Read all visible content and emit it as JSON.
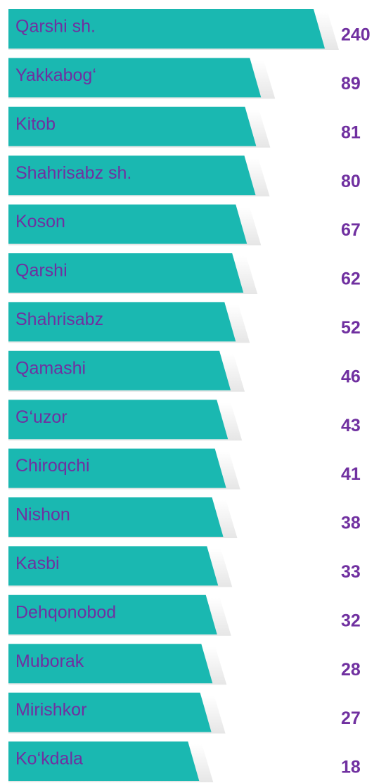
{
  "chart_data": {
    "type": "bar",
    "orientation": "horizontal",
    "categories": [
      "Qarshi sh.",
      "Yakkabog‘",
      "Kitob",
      "Shahrisabz sh.",
      "Koson",
      "Qarshi",
      "Shahrisabz",
      "Qamashi",
      "G‘uzor",
      "Chiroqchi",
      "Nishon",
      "Kasbi",
      "Dehqonobod",
      "Muborak",
      "Mirishkor",
      "Ko‘kdala"
    ],
    "values": [
      240,
      89,
      81,
      80,
      67,
      62,
      52,
      46,
      43,
      41,
      38,
      33,
      32,
      28,
      27,
      18
    ],
    "color": "#1ab8b1",
    "label_color": "#7030a0"
  }
}
